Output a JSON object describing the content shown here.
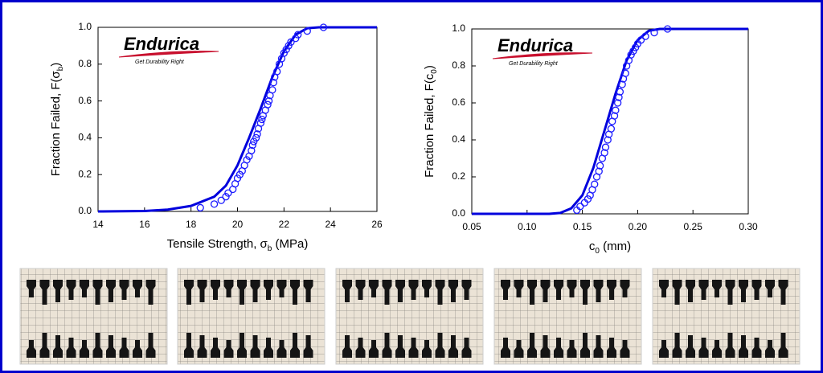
{
  "logo": {
    "name": "Endurica",
    "tagline": "Get Durability Right"
  },
  "chart_data": [
    {
      "type": "scatter",
      "x_label": [
        "Tensile Strength, σ",
        "b",
        " (MPa)"
      ],
      "y_label": [
        "Fraction Failed, F(σ",
        "b",
        ")"
      ],
      "xlim": [
        14,
        26
      ],
      "xticks": [
        14,
        16,
        18,
        20,
        22,
        24,
        26
      ],
      "ylim": [
        0,
        1
      ],
      "yticks": [
        {
          "value": 0,
          "label": "0.0"
        },
        0.2,
        0.4,
        0.6,
        0.8,
        {
          "value": 1,
          "label": "1.0"
        }
      ],
      "points": {
        "color": "#1a1aff",
        "x": [
          18.4,
          19.0,
          19.3,
          19.5,
          19.6,
          19.8,
          19.9,
          20.0,
          20.1,
          20.2,
          20.3,
          20.4,
          20.5,
          20.6,
          20.65,
          20.7,
          20.8,
          20.85,
          20.9,
          21.0,
          21.05,
          21.1,
          21.2,
          21.3,
          21.35,
          21.4,
          21.5,
          21.55,
          21.6,
          21.7,
          21.8,
          21.9,
          22.0,
          22.1,
          22.2,
          22.3,
          22.5,
          22.6,
          23.0,
          23.7
        ],
        "y": [
          0.02,
          0.04,
          0.06,
          0.08,
          0.1,
          0.12,
          0.15,
          0.18,
          0.2,
          0.22,
          0.25,
          0.28,
          0.3,
          0.33,
          0.36,
          0.38,
          0.4,
          0.42,
          0.45,
          0.48,
          0.5,
          0.52,
          0.55,
          0.58,
          0.6,
          0.63,
          0.66,
          0.7,
          0.73,
          0.76,
          0.8,
          0.83,
          0.86,
          0.88,
          0.9,
          0.92,
          0.94,
          0.96,
          0.98,
          1.0
        ]
      },
      "fit": {
        "color": "#0000dd",
        "x": [
          14,
          16,
          17,
          18,
          19,
          19.5,
          20,
          20.5,
          21,
          21.5,
          22,
          22.5,
          23,
          23.5,
          24,
          26
        ],
        "y": [
          0,
          0.002,
          0.01,
          0.03,
          0.08,
          0.14,
          0.25,
          0.4,
          0.56,
          0.73,
          0.87,
          0.96,
          0.995,
          1,
          1,
          1
        ]
      }
    },
    {
      "type": "scatter",
      "x_label": [
        "c",
        "0",
        " (mm)"
      ],
      "y_label": [
        "Fraction Failed, F(c",
        "0",
        ")"
      ],
      "xlim": [
        0.05,
        0.3
      ],
      "xticks": [
        0.05,
        {
          "value": 0.1,
          "label": "0.10"
        },
        0.15,
        {
          "value": 0.2,
          "label": "0.20"
        },
        0.25,
        {
          "value": 0.3,
          "label": "0.30"
        }
      ],
      "ylim": [
        0,
        1
      ],
      "yticks": [
        {
          "value": 0,
          "label": "0.0"
        },
        0.2,
        0.4,
        0.6,
        0.8,
        {
          "value": 1,
          "label": "1.0"
        }
      ],
      "points": {
        "color": "#1a1aff",
        "x": [
          0.145,
          0.148,
          0.152,
          0.155,
          0.157,
          0.159,
          0.161,
          0.163,
          0.165,
          0.166,
          0.168,
          0.17,
          0.171,
          0.173,
          0.174,
          0.176,
          0.177,
          0.179,
          0.18,
          0.182,
          0.183,
          0.184,
          0.186,
          0.187,
          0.189,
          0.19,
          0.192,
          0.194,
          0.196,
          0.198,
          0.2,
          0.203,
          0.207,
          0.215,
          0.227
        ],
        "y": [
          0.02,
          0.04,
          0.06,
          0.08,
          0.1,
          0.13,
          0.16,
          0.2,
          0.23,
          0.26,
          0.3,
          0.33,
          0.36,
          0.4,
          0.43,
          0.46,
          0.5,
          0.53,
          0.56,
          0.6,
          0.63,
          0.66,
          0.7,
          0.73,
          0.76,
          0.8,
          0.83,
          0.86,
          0.88,
          0.9,
          0.92,
          0.94,
          0.96,
          0.98,
          1.0
        ]
      },
      "fit": {
        "color": "#0000dd",
        "x": [
          0.05,
          0.12,
          0.13,
          0.14,
          0.15,
          0.16,
          0.17,
          0.18,
          0.19,
          0.2,
          0.21,
          0.22,
          0.3
        ],
        "y": [
          0,
          0,
          0.005,
          0.03,
          0.1,
          0.25,
          0.45,
          0.65,
          0.83,
          0.94,
          0.99,
          1,
          1
        ]
      }
    }
  ]
}
